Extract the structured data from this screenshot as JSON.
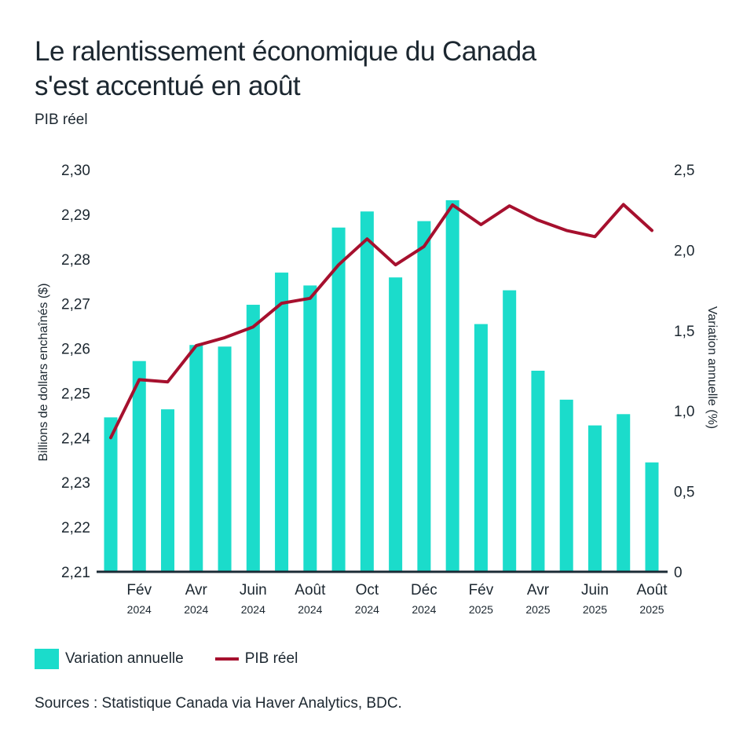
{
  "title_line1": "Le ralentissement économique du Canada",
  "title_line2": "s'est accentué en août",
  "subtitle": "PIB réel",
  "sources": "Sources : Statistique Canada via Haver Analytics, BDC.",
  "colors": {
    "bars": "#1bdccb",
    "line": "#a6102e",
    "axis": "#1c2b36",
    "text": "#1c2730"
  },
  "chart_data": {
    "type": "bar",
    "combo": "bar + line (dual axis)",
    "title": "Le ralentissement économique du Canada s'est accentué en août",
    "subtitle": "PIB réel",
    "categories": [
      "Jan 2024",
      "Fév 2024",
      "Mar 2024",
      "Avr 2024",
      "Mai 2024",
      "Juin 2024",
      "Juil 2024",
      "Août 2024",
      "Sep 2024",
      "Oct 2024",
      "Nov 2024",
      "Déc 2024",
      "Jan 2025",
      "Fév 2025",
      "Mar 2025",
      "Avr 2025",
      "Mai 2025",
      "Juin 2025",
      "Juil 2025",
      "Août 2025"
    ],
    "x_tick_labels": [
      {
        "index": 1,
        "month": "Fév",
        "year": "2024"
      },
      {
        "index": 3,
        "month": "Avr",
        "year": "2024"
      },
      {
        "index": 5,
        "month": "Juin",
        "year": "2024"
      },
      {
        "index": 7,
        "month": "Août",
        "year": "2024"
      },
      {
        "index": 9,
        "month": "Oct",
        "year": "2024"
      },
      {
        "index": 11,
        "month": "Déc",
        "year": "2024"
      },
      {
        "index": 13,
        "month": "Fév",
        "year": "2025"
      },
      {
        "index": 15,
        "month": "Avr",
        "year": "2025"
      },
      {
        "index": 17,
        "month": "Juin",
        "year": "2025"
      },
      {
        "index": 19,
        "month": "Août",
        "year": "2025"
      }
    ],
    "series": [
      {
        "name": "Variation annuelle",
        "type": "bar",
        "axis": "right",
        "values": [
          0.96,
          1.31,
          1.01,
          1.41,
          1.4,
          1.66,
          1.86,
          1.78,
          2.14,
          2.24,
          1.83,
          2.18,
          2.31,
          1.54,
          1.75,
          1.25,
          1.07,
          0.91,
          0.98,
          0.68
        ]
      },
      {
        "name": "PIB réel",
        "type": "line",
        "axis": "left",
        "values": [
          2.24,
          2.253,
          2.2525,
          2.2606,
          2.2624,
          2.2648,
          2.2701,
          2.2712,
          2.2787,
          2.2845,
          2.2787,
          2.2828,
          2.2921,
          2.2877,
          2.2919,
          2.2887,
          2.2864,
          2.285,
          2.2922,
          2.2864
        ]
      }
    ],
    "y_left": {
      "label": "Billions de dollars enchaînés ($)",
      "lim": [
        2.21,
        2.3
      ],
      "ticks": [
        "2,21",
        "2,22",
        "2,23",
        "2,24",
        "2,25",
        "2,26",
        "2,27",
        "2,28",
        "2,29",
        "2,30"
      ]
    },
    "y_right": {
      "label": "Variation annuelle (%)",
      "lim": [
        0,
        2.5
      ],
      "ticks": [
        "0",
        "0,5",
        "1,0",
        "1,5",
        "2,0",
        "2,5"
      ]
    },
    "grid": false,
    "legend": {
      "position": "bottom-left",
      "entries": [
        {
          "label": "Variation annuelle",
          "kind": "bar"
        },
        {
          "label": "PIB réel",
          "kind": "line"
        }
      ]
    }
  }
}
